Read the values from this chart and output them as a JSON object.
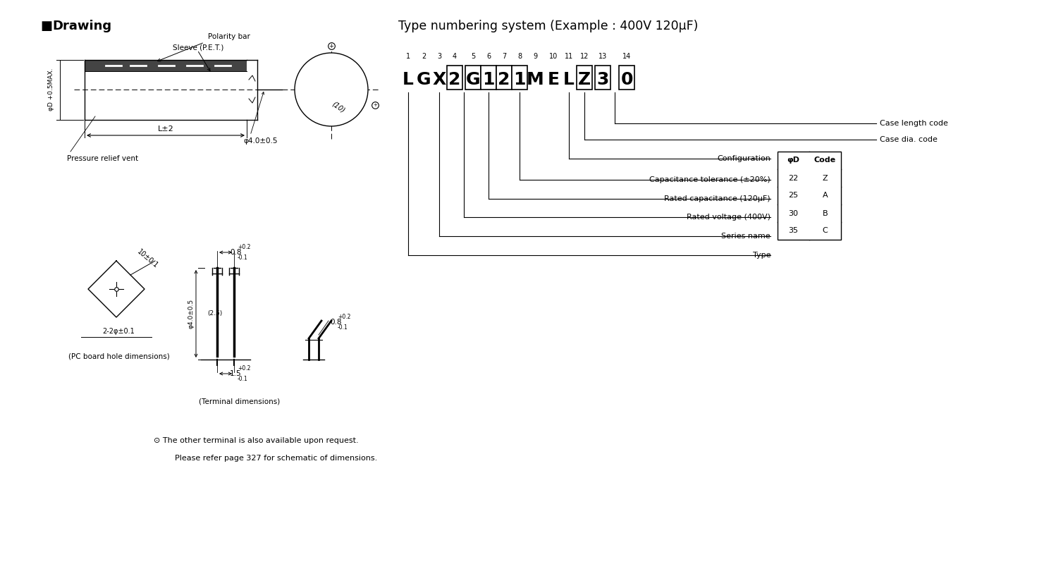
{
  "bg_color": "#ffffff",
  "title_right": "Type numbering system (Example : 400V 120μF)",
  "code_chars": [
    "L",
    "G",
    "X",
    "2",
    "G",
    "1",
    "2",
    "1",
    "M",
    "E",
    "L",
    "Z",
    "3",
    "0"
  ],
  "char_nums": [
    "1",
    "2",
    "3",
    "4",
    "5",
    "6",
    "7",
    "8",
    "9",
    "10",
    "11",
    "12",
    "13",
    "14"
  ],
  "boxed_indices": [
    3,
    4,
    5,
    6,
    7,
    11,
    12,
    13
  ],
  "labels_right": [
    "Configuration",
    "Capacitance tolerance (±20%)",
    "Rated capacitance (120μF)",
    "Rated voltage (400V)",
    "Series name",
    "Type"
  ],
  "table_header": [
    "φD",
    "Code"
  ],
  "table_rows": [
    [
      "22",
      "Z"
    ],
    [
      "25",
      "A"
    ],
    [
      "30",
      "B"
    ],
    [
      "35",
      "C"
    ]
  ],
  "case_length_code": "Case length code",
  "case_dia_code": "Case dia. code",
  "note1": "⊙ The other terminal is also available upon request.",
  "note2": "Please refer page 327 for schematic of dimensions.",
  "label_polarity": "Polarity bar",
  "label_sleeve": "Sleeve (P.E.T.)",
  "label_pressure": "Pressure relief vent",
  "label_dim_phi40": "φ4.0±0.5",
  "label_dim_phiD": "φD +0.5MAX.",
  "label_dim_L": "L±2",
  "label_pc": "(PC board hole dimensions)",
  "label_terminal": "(Terminal dimensions)",
  "label_10r": "10±0.1",
  "label_22phi": "2-2φ±0.1",
  "label_phi40": "φ4.0±0.5",
  "label_25": "(2.5)",
  "label_08": "0.8",
  "label_08tol": "+0.2\n-0.1",
  "label_15": "1.5",
  "label_15tol": "+0.2\n-0.1"
}
